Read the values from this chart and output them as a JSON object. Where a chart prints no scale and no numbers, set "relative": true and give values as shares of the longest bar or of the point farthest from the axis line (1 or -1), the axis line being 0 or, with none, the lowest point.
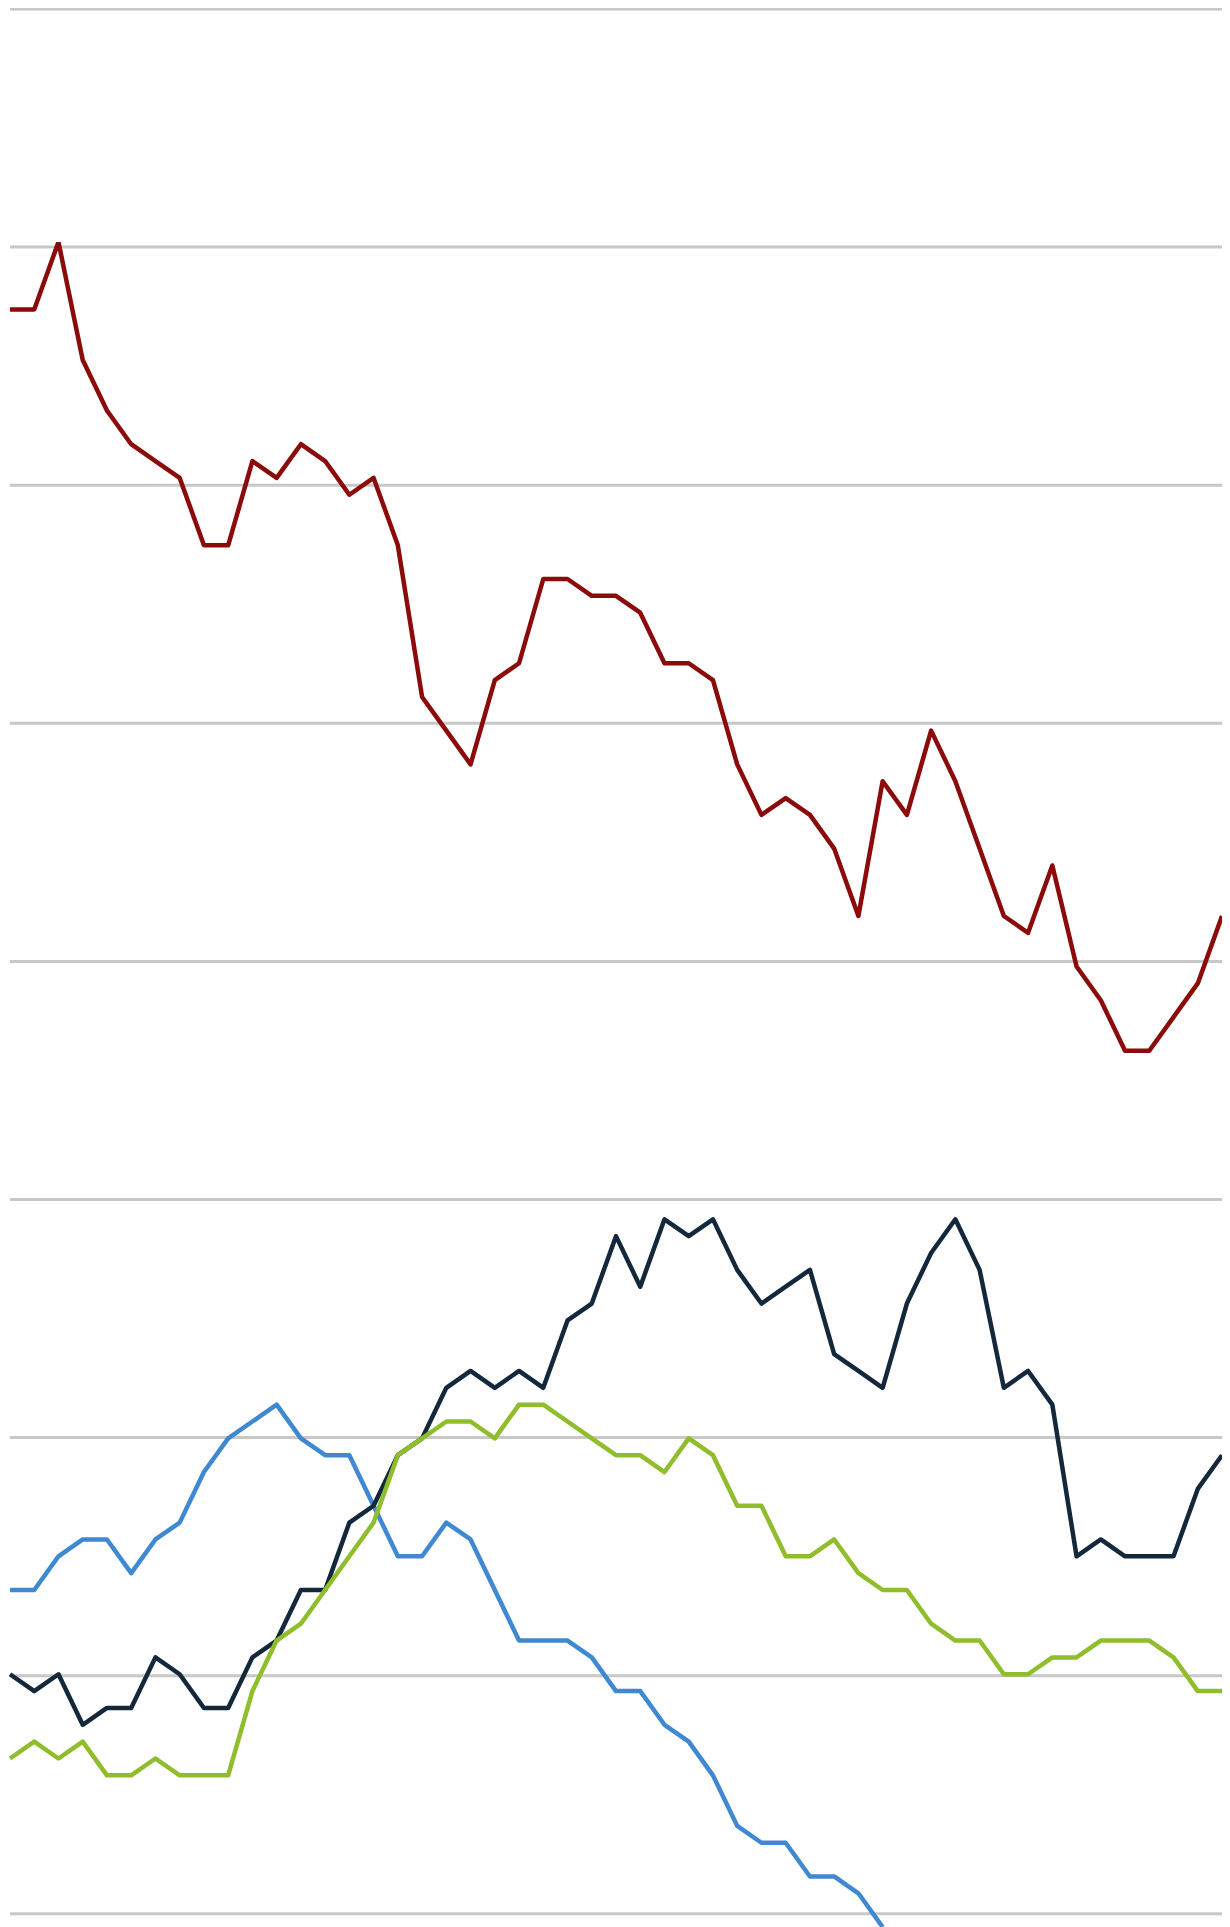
{
  "chart_data": {
    "type": "line",
    "relative": true,
    "grid": "y",
    "legend": false,
    "marker": "none",
    "line_style": "solid",
    "categories": [
      null,
      null,
      null,
      null,
      null,
      null,
      null,
      null,
      null,
      null,
      null,
      null,
      null,
      null,
      null,
      null,
      null,
      null,
      null,
      null,
      null,
      null,
      null,
      null,
      null,
      null,
      null,
      null,
      null,
      null,
      null,
      null,
      null,
      null,
      null,
      null,
      null,
      null,
      null,
      null,
      null,
      null,
      null,
      null,
      null,
      null,
      null,
      null,
      null,
      null,
      null
    ],
    "series": [
      {
        "color": "#8b0a0a",
        "values": [
          0.96,
          0.96,
          1.0,
          0.93,
          0.9,
          0.88,
          0.87,
          0.86,
          0.82,
          0.82,
          0.87,
          0.86,
          0.88,
          0.87,
          0.85,
          0.86,
          0.82,
          0.73,
          0.71,
          0.69,
          0.74,
          0.75,
          0.8,
          0.8,
          0.79,
          0.79,
          0.78,
          0.75,
          0.75,
          0.74,
          0.69,
          0.66,
          0.67,
          0.66,
          0.64,
          0.6,
          0.68,
          0.66,
          0.71,
          0.68,
          0.64,
          0.6,
          0.59,
          0.63,
          0.57,
          0.55,
          0.52,
          0.52,
          0.54,
          0.56,
          0.6
        ]
      },
      {
        "color": "#3f88d2",
        "values": [
          0.2,
          0.2,
          0.22,
          0.23,
          0.23,
          0.21,
          0.23,
          0.24,
          0.27,
          0.29,
          0.3,
          0.31,
          0.29,
          0.28,
          0.28,
          0.25,
          0.22,
          0.22,
          0.24,
          0.23,
          0.2,
          0.17,
          0.17,
          0.17,
          0.16,
          0.14,
          0.14,
          0.12,
          0.11,
          0.09,
          0.06,
          0.05,
          0.05,
          0.03,
          0.03,
          0.02,
          0,
          null,
          null,
          null,
          null,
          null,
          null,
          null,
          null,
          null,
          null,
          null,
          null,
          null,
          null
        ]
      },
      {
        "color": "#14283c",
        "values": [
          0.15,
          0.14,
          0.15,
          0.12,
          0.13,
          0.13,
          0.16,
          0.15,
          0.13,
          0.13,
          0.16,
          0.17,
          0.2,
          0.2,
          0.24,
          0.25,
          0.28,
          0.29,
          0.32,
          0.33,
          0.32,
          0.33,
          0.32,
          0.36,
          0.37,
          0.41,
          0.38,
          0.42,
          0.41,
          0.42,
          0.39,
          0.37,
          0.38,
          0.39,
          0.34,
          0.33,
          0.32,
          0.37,
          0.4,
          0.42,
          0.39,
          0.32,
          0.33,
          0.31,
          0.22,
          0.23,
          0.22,
          0.22,
          0.22,
          0.26,
          0.28
        ]
      },
      {
        "color": "#8fbd2c",
        "values": [
          0.1,
          0.11,
          0.1,
          0.11,
          0.09,
          0.09,
          0.1,
          0.09,
          0.09,
          0.09,
          0.14,
          0.17,
          0.18,
          0.2,
          0.22,
          0.24,
          0.28,
          0.29,
          0.3,
          0.3,
          0.29,
          0.31,
          0.31,
          0.3,
          0.29,
          0.28,
          0.28,
          0.27,
          0.29,
          0.28,
          0.25,
          0.25,
          0.22,
          0.22,
          0.23,
          0.21,
          0.2,
          0.2,
          0.18,
          0.17,
          0.17,
          0.15,
          0.15,
          0.16,
          0.16,
          0.17,
          0.17,
          0.17,
          0.16,
          0.14,
          0.14
        ]
      }
    ]
  }
}
